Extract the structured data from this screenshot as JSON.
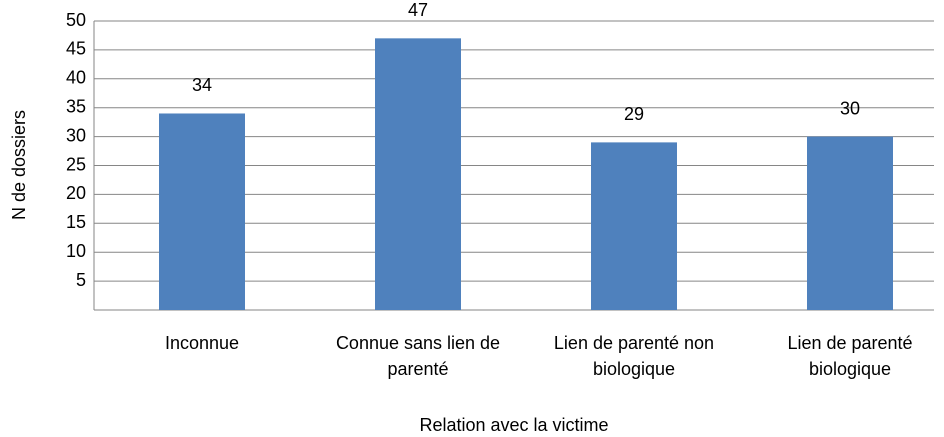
{
  "chart_data": {
    "type": "bar",
    "categories": [
      "Inconnue",
      "Connue sans lien de parenté",
      "Lien de parenté non biologique",
      "Lien de parenté biologique"
    ],
    "values": [
      34,
      47,
      29,
      30
    ],
    "color": "#4f81bd",
    "xlabel": "Relation avec la victime",
    "ylabel": "N de dossiers",
    "ylim": [
      0,
      50
    ],
    "yticks": [
      5,
      10,
      15,
      20,
      25,
      30,
      35,
      40,
      45,
      50
    ],
    "grid": true
  }
}
